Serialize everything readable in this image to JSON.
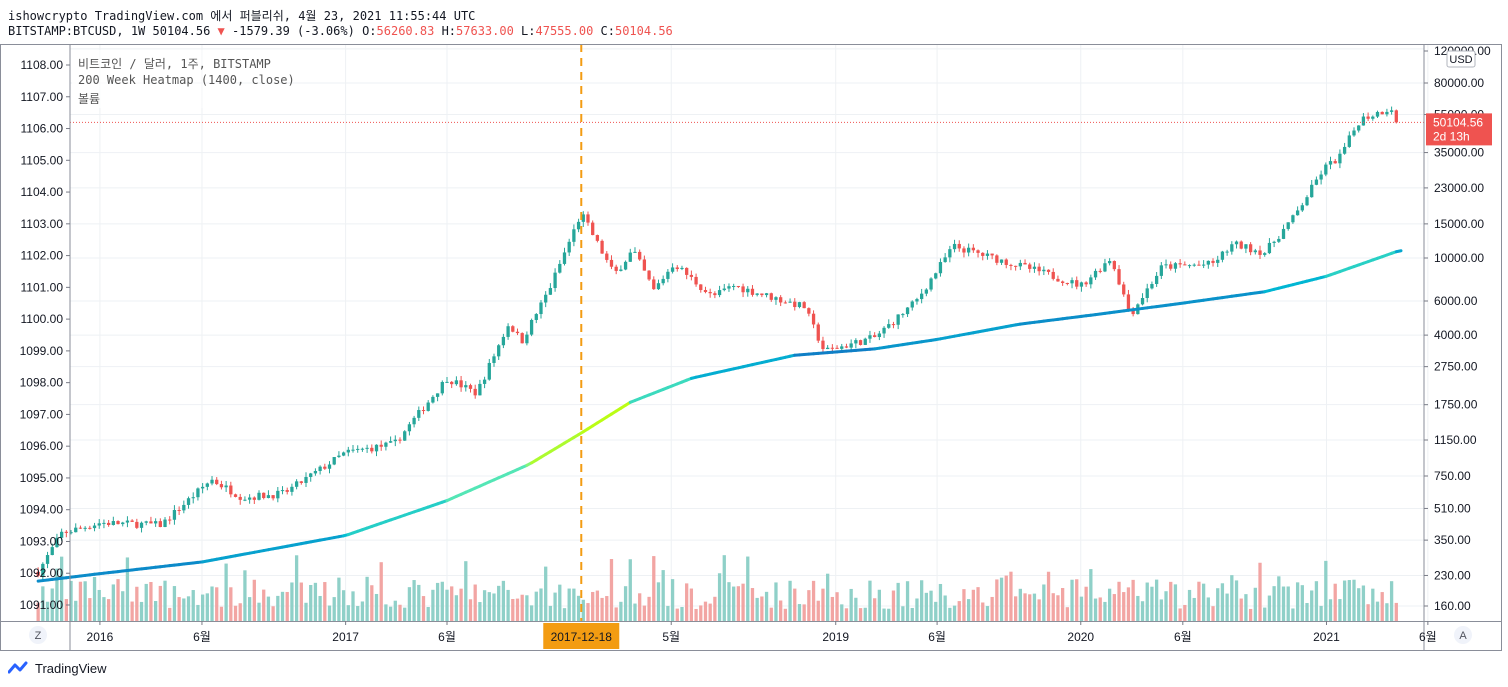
{
  "header": {
    "line1": "ishowcrypto TradingView.com 에서 퍼블리쉬, 4월 23, 2021 11:55:44 UTC",
    "symbol": "BITSTAMP:BTCUSD, 1W",
    "last": "50104.56",
    "change": "-1579.39 (-3.06%)",
    "o_label": "O:",
    "o": "56260.83",
    "h_label": "H:",
    "h": "57633.00",
    "l_label": "L:",
    "l": "47555.00",
    "c_label": "C:",
    "c": "50104.56"
  },
  "legend": {
    "series_title": "비트코인 / 달러, 1주, BITSTAMP",
    "indicator": "200 Week Heatmap (1400, close)",
    "volume": "볼륨"
  },
  "price_badge": {
    "price": "50104.56",
    "countdown": "2d 13h"
  },
  "currency": "USD",
  "crosshair_date": "2017-12-18",
  "bottom_left_button": "Z",
  "bottom_right_button": "A",
  "brand": "TradingView",
  "colors": {
    "up": "#26a69a",
    "down": "#ef5350",
    "vol_up": "#8fd0c8",
    "vol_down": "#f2a5a3",
    "crosshair": "#f39c12",
    "grid": "#eef1f4",
    "axis": "#787b86"
  },
  "chart_data": {
    "type": "candlestick",
    "scale": "log",
    "x_tick_labels": [
      "2016",
      "6월",
      "2017",
      "6월",
      "5월",
      "2019",
      "6월",
      "2020",
      "6월",
      "2021",
      "6월"
    ],
    "left_axis_labels": [
      "1108.00",
      "1107.00",
      "1106.00",
      "1105.00",
      "1104.00",
      "1103.00",
      "1102.00",
      "1101.00",
      "1100.00",
      "1099.00",
      "1098.00",
      "1097.00",
      "1096.00",
      "1095.00",
      "1094.00",
      "1093.00",
      "1092.00",
      "1091.00"
    ],
    "right_axis_labels": [
      "120000.00",
      "80000.00",
      "55000.00",
      "35000.00",
      "23000.00",
      "15000.00",
      "10000.00",
      "6000.00",
      "4000.00",
      "2750.00",
      "1750.00",
      "1150.00",
      "750.00",
      "510.00",
      "350.00",
      "230.00",
      "160.00"
    ],
    "price_anchors": [
      [
        "2015-10-01",
        240
      ],
      [
        "2015-11-05",
        380
      ],
      [
        "2016-01-01",
        430
      ],
      [
        "2016-04-01",
        420
      ],
      [
        "2016-06-15",
        720
      ],
      [
        "2016-08-01",
        580
      ],
      [
        "2016-10-01",
        610
      ],
      [
        "2017-01-01",
        990
      ],
      [
        "2017-03-15",
        1100
      ],
      [
        "2017-06-01",
        2400
      ],
      [
        "2017-07-15",
        2000
      ],
      [
        "2017-09-01",
        4600
      ],
      [
        "2017-09-20",
        3700
      ],
      [
        "2017-11-01",
        7000
      ],
      [
        "2017-12-18",
        17000
      ],
      [
        "2018-02-05",
        8200
      ],
      [
        "2018-03-05",
        11000
      ],
      [
        "2018-04-05",
        6800
      ],
      [
        "2018-05-05",
        9400
      ],
      [
        "2018-07-01",
        6300
      ],
      [
        "2018-08-01",
        7200
      ],
      [
        "2018-11-15",
        5600
      ],
      [
        "2018-12-15",
        3300
      ],
      [
        "2019-03-01",
        3900
      ],
      [
        "2019-05-01",
        6000
      ],
      [
        "2019-06-25",
        11500
      ],
      [
        "2019-09-01",
        9800
      ],
      [
        "2019-11-01",
        8500
      ],
      [
        "2020-01-01",
        7200
      ],
      [
        "2020-02-15",
        10000
      ],
      [
        "2020-03-15",
        5100
      ],
      [
        "2020-05-01",
        9000
      ],
      [
        "2020-07-15",
        9300
      ],
      [
        "2020-08-15",
        11800
      ],
      [
        "2020-10-01",
        10700
      ],
      [
        "2020-11-15",
        16500
      ],
      [
        "2020-12-28",
        29000
      ],
      [
        "2021-01-20",
        33000
      ],
      [
        "2021-02-20",
        52000
      ],
      [
        "2021-04-10",
        60000
      ],
      [
        "2021-04-19",
        50104.56
      ]
    ],
    "ma200_anchors": [
      [
        "2015-10-01",
        215
      ],
      [
        "2016-01-01",
        235
      ],
      [
        "2016-06-01",
        270
      ],
      [
        "2017-01-01",
        370
      ],
      [
        "2017-06-01",
        560
      ],
      [
        "2017-10-01",
        860
      ],
      [
        "2017-12-18",
        1250
      ],
      [
        "2018-03-01",
        1800
      ],
      [
        "2018-06-01",
        2400
      ],
      [
        "2018-11-01",
        3150
      ],
      [
        "2019-03-01",
        3400
      ],
      [
        "2019-06-01",
        3800
      ],
      [
        "2019-10-01",
        4550
      ],
      [
        "2020-02-01",
        5150
      ],
      [
        "2020-06-01",
        5850
      ],
      [
        "2020-10-01",
        6700
      ],
      [
        "2021-01-01",
        8050
      ],
      [
        "2021-04-19",
        10900
      ]
    ],
    "volume_scale_note": "relative"
  }
}
